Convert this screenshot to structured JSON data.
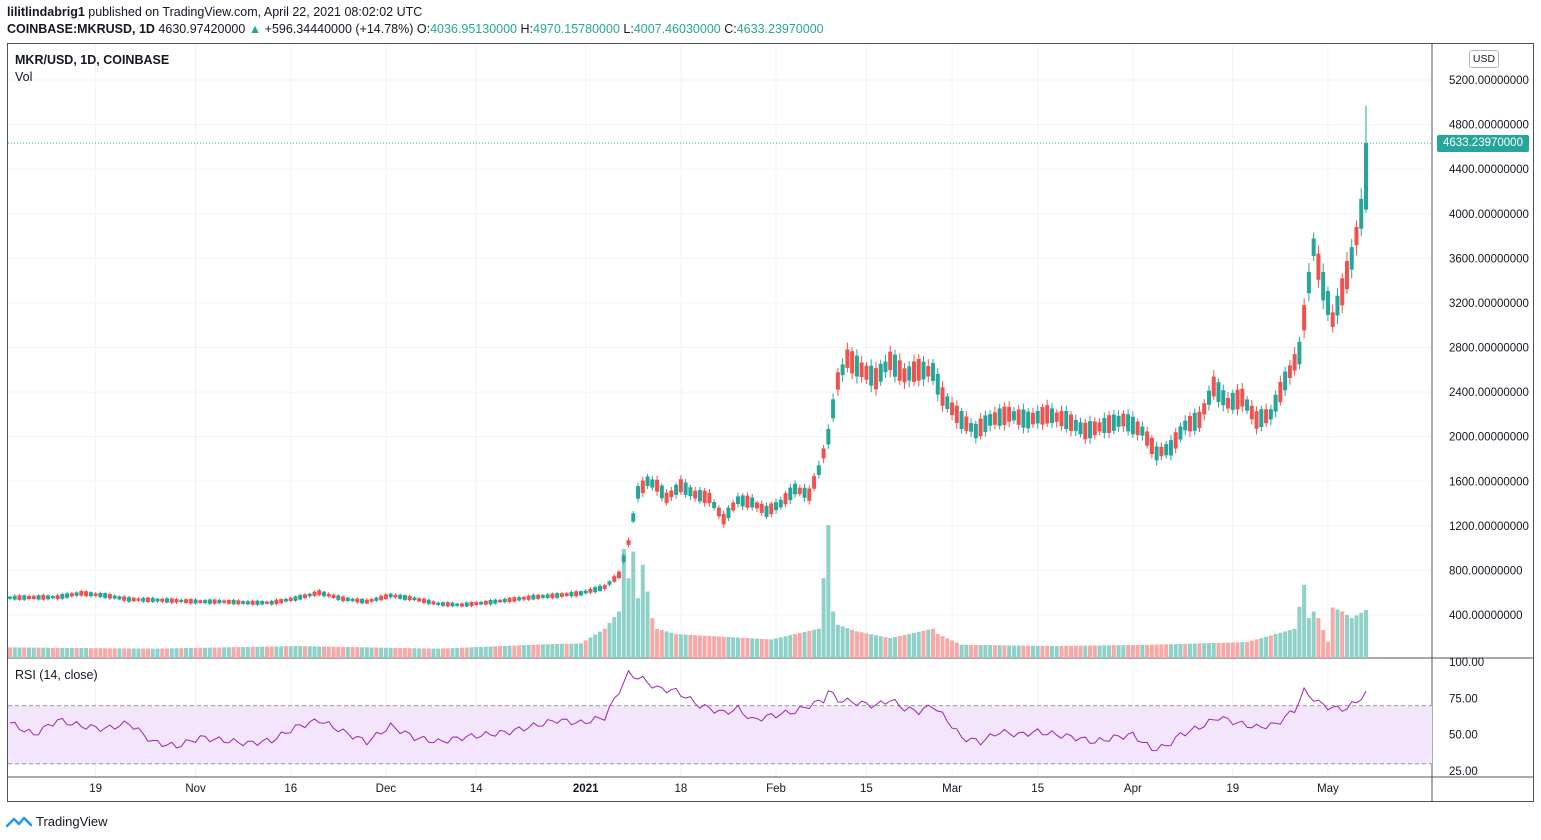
{
  "header": {
    "publisher": "lilitlindabrig1",
    "published_text": "published on TradingView.com, April 22, 2021 08:02:02 UTC",
    "symbol_full": "COINBASE:MKRUSD, 1D",
    "open_price": "4630.97420000",
    "change": "+596.34440000 (+14.78%)",
    "o_label": "O:",
    "o_value": "4036.95130000",
    "h_label": "H:",
    "h_value": "4970.15780000",
    "l_label": "L:",
    "l_value": "4007.46030000",
    "c_label": "C:",
    "c_value": "4633.23970000"
  },
  "legend": {
    "symbol": "MKR/USD, 1D, COINBASE",
    "volume": "Vol",
    "rsi": "RSI (14, close)",
    "currency": "USD"
  },
  "brand": "TradingView",
  "colors": {
    "up": "#26a69a",
    "down": "#ef5350",
    "vol_up": "#8fd1c8",
    "vol_down": "#f7a9a7",
    "rsi_line": "#9c27b0",
    "rsi_band": "#f3e5fb"
  },
  "chart_data": [
    {
      "type": "candlestick",
      "title": "MKR/USD, 1D, COINBASE",
      "ylim": [
        200,
        5400
      ],
      "y_ticks": [
        "5200.00000000",
        "4800.00000000",
        "4400.00000000",
        "4000.00000000",
        "3600.00000000",
        "3200.00000000",
        "2800.00000000",
        "2400.00000000",
        "2000.00000000",
        "1600.00000000",
        "1200.00000000",
        "800.00000000",
        "400.00000000"
      ],
      "y_tick_values": [
        5200,
        4800,
        4400,
        4000,
        3600,
        3200,
        2800,
        2400,
        2000,
        1600,
        1200,
        800,
        400
      ],
      "x_ticks": [
        "19",
        "Nov",
        "16",
        "Dec",
        "14",
        "2021",
        "18",
        "Feb",
        "15",
        "Mar",
        "15",
        "Apr",
        "19",
        "May"
      ],
      "x_tick_bold": [
        "2021"
      ],
      "last_price": "4633.23970000",
      "last_value": 4633.2397,
      "keypoints": [
        [
          0,
          555
        ],
        [
          10,
          560
        ],
        [
          15,
          595
        ],
        [
          20,
          575
        ],
        [
          25,
          540
        ],
        [
          30,
          535
        ],
        [
          40,
          520
        ],
        [
          45,
          520
        ],
        [
          50,
          510
        ],
        [
          55,
          510
        ],
        [
          60,
          548
        ],
        [
          65,
          600
        ],
        [
          70,
          545
        ],
        [
          75,
          520
        ],
        [
          80,
          575
        ],
        [
          85,
          545
        ],
        [
          90,
          500
        ],
        [
          95,
          490
        ],
        [
          100,
          510
        ],
        [
          105,
          535
        ],
        [
          110,
          560
        ],
        [
          115,
          575
        ],
        [
          120,
          595
        ],
        [
          125,
          650
        ],
        [
          128,
          760
        ],
        [
          130,
          1050
        ],
        [
          132,
          1500
        ],
        [
          134,
          1600
        ],
        [
          136,
          1560
        ],
        [
          138,
          1450
        ],
        [
          141,
          1560
        ],
        [
          144,
          1480
        ],
        [
          147,
          1450
        ],
        [
          150,
          1260
        ],
        [
          153,
          1430
        ],
        [
          156,
          1410
        ],
        [
          159,
          1330
        ],
        [
          162,
          1400
        ],
        [
          165,
          1530
        ],
        [
          168,
          1480
        ],
        [
          170,
          1700
        ],
        [
          172,
          2000
        ],
        [
          174,
          2500
        ],
        [
          176,
          2700
        ],
        [
          179,
          2600
        ],
        [
          182,
          2520
        ],
        [
          185,
          2680
        ],
        [
          188,
          2550
        ],
        [
          191,
          2600
        ],
        [
          194,
          2580
        ],
        [
          196,
          2360
        ],
        [
          198,
          2250
        ],
        [
          200,
          2150
        ],
        [
          203,
          2050
        ],
        [
          206,
          2150
        ],
        [
          210,
          2200
        ],
        [
          214,
          2150
        ],
        [
          218,
          2200
        ],
        [
          222,
          2150
        ],
        [
          226,
          2050
        ],
        [
          230,
          2100
        ],
        [
          234,
          2150
        ],
        [
          238,
          2050
        ],
        [
          241,
          1850
        ],
        [
          244,
          1900
        ],
        [
          247,
          2100
        ],
        [
          250,
          2150
        ],
        [
          253,
          2450
        ],
        [
          256,
          2300
        ],
        [
          259,
          2350
        ],
        [
          262,
          2150
        ],
        [
          265,
          2200
        ],
        [
          268,
          2500
        ],
        [
          271,
          2750
        ],
        [
          274,
          3700
        ],
        [
          276,
          3350
        ],
        [
          278,
          3050
        ],
        [
          280,
          3300
        ],
        [
          282,
          3600
        ],
        [
          284,
          4000
        ],
        [
          285,
          4633.2397
        ]
      ],
      "last_candle": {
        "open": 4036.9513,
        "high": 4970.1578,
        "low": 4007.4603,
        "close": 4633.2397
      }
    },
    {
      "type": "bar",
      "title": "Vol",
      "vol_keypoints": [
        [
          0,
          0.08
        ],
        [
          30,
          0.07
        ],
        [
          60,
          0.09
        ],
        [
          90,
          0.07
        ],
        [
          110,
          0.1
        ],
        [
          120,
          0.11
        ],
        [
          125,
          0.22
        ],
        [
          128,
          0.35
        ],
        [
          129,
          0.82
        ],
        [
          130,
          0.6
        ],
        [
          131,
          0.8
        ],
        [
          132,
          0.45
        ],
        [
          133,
          0.7
        ],
        [
          134,
          0.5
        ],
        [
          135,
          0.3
        ],
        [
          136,
          0.22
        ],
        [
          140,
          0.18
        ],
        [
          150,
          0.16
        ],
        [
          160,
          0.14
        ],
        [
          165,
          0.18
        ],
        [
          170,
          0.22
        ],
        [
          171,
          0.6
        ],
        [
          172,
          1.0
        ],
        [
          173,
          0.35
        ],
        [
          174,
          0.25
        ],
        [
          178,
          0.2
        ],
        [
          185,
          0.15
        ],
        [
          194,
          0.22
        ],
        [
          195,
          0.18
        ],
        [
          200,
          0.1
        ],
        [
          220,
          0.09
        ],
        [
          240,
          0.1
        ],
        [
          260,
          0.12
        ],
        [
          270,
          0.22
        ],
        [
          272,
          0.55
        ],
        [
          273,
          0.3
        ],
        [
          274,
          0.35
        ],
        [
          275,
          0.3
        ],
        [
          277,
          0.12
        ],
        [
          278,
          0.38
        ],
        [
          280,
          0.35
        ],
        [
          282,
          0.3
        ],
        [
          285,
          0.36
        ]
      ]
    },
    {
      "type": "line",
      "title": "RSI (14, close)",
      "ylim": [
        20,
        105
      ],
      "y_ticks": [
        "100.00",
        "75.00",
        "50.00",
        "25.00"
      ],
      "y_tick_values": [
        100,
        75,
        50,
        25
      ],
      "band": [
        30,
        70
      ],
      "points": [
        [
          0,
          58
        ],
        [
          5,
          50
        ],
        [
          10,
          60
        ],
        [
          15,
          56
        ],
        [
          20,
          54
        ],
        [
          25,
          58
        ],
        [
          30,
          45
        ],
        [
          35,
          42
        ],
        [
          40,
          48
        ],
        [
          45,
          46
        ],
        [
          50,
          44
        ],
        [
          55,
          46
        ],
        [
          60,
          55
        ],
        [
          65,
          60
        ],
        [
          70,
          52
        ],
        [
          75,
          45
        ],
        [
          80,
          56
        ],
        [
          85,
          48
        ],
        [
          90,
          45
        ],
        [
          95,
          48
        ],
        [
          100,
          50
        ],
        [
          105,
          52
        ],
        [
          110,
          56
        ],
        [
          115,
          60
        ],
        [
          120,
          58
        ],
        [
          125,
          62
        ],
        [
          128,
          80
        ],
        [
          130,
          92
        ],
        [
          133,
          88
        ],
        [
          136,
          82
        ],
        [
          140,
          80
        ],
        [
          145,
          70
        ],
        [
          150,
          65
        ],
        [
          153,
          68
        ],
        [
          156,
          60
        ],
        [
          160,
          63
        ],
        [
          165,
          66
        ],
        [
          168,
          70
        ],
        [
          171,
          74
        ],
        [
          172,
          80
        ],
        [
          174,
          74
        ],
        [
          178,
          72
        ],
        [
          182,
          70
        ],
        [
          185,
          74
        ],
        [
          188,
          68
        ],
        [
          191,
          66
        ],
        [
          194,
          70
        ],
        [
          197,
          60
        ],
        [
          200,
          48
        ],
        [
          204,
          45
        ],
        [
          208,
          52
        ],
        [
          212,
          50
        ],
        [
          216,
          52
        ],
        [
          220,
          50
        ],
        [
          224,
          48
        ],
        [
          228,
          45
        ],
        [
          232,
          48
        ],
        [
          236,
          50
        ],
        [
          240,
          40
        ],
        [
          243,
          42
        ],
        [
          246,
          50
        ],
        [
          250,
          55
        ],
        [
          254,
          62
        ],
        [
          258,
          58
        ],
        [
          262,
          55
        ],
        [
          266,
          57
        ],
        [
          270,
          67
        ],
        [
          272,
          80
        ],
        [
          275,
          72
        ],
        [
          278,
          68
        ],
        [
          281,
          68
        ],
        [
          285,
          78
        ]
      ]
    }
  ]
}
